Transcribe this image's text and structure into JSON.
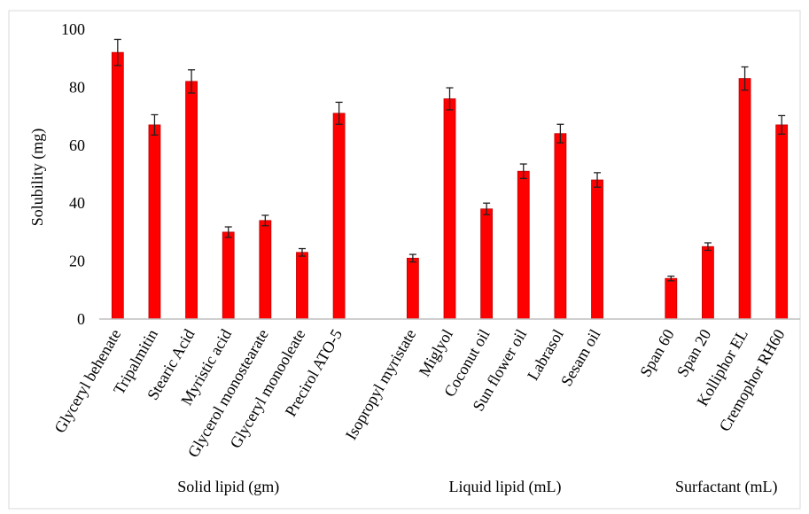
{
  "chart_data": {
    "type": "bar",
    "ylabel": "Solubility (mg)",
    "ylim": [
      0,
      100
    ],
    "yticks": [
      0,
      20,
      40,
      60,
      80,
      100
    ],
    "grid": false,
    "bar_color": "#ff0000",
    "bar_edge_color": "#c00000",
    "error_bar_color": "#222222",
    "categories": [
      "Glyceryl behenate",
      "Tripalmitin",
      "Stearic Acid",
      "Myristic acid",
      "Glycerol monostearate",
      "Glyceryl monooleate",
      "Precirol ATO-5",
      "",
      "Isopropyl myristate",
      "Miglyol",
      "Coconut oil",
      "Sun flower oil",
      "Labrasol",
      "Sesam oil",
      "",
      "Span 60",
      "Span 20",
      "Kolliphor EL",
      "Cremophor RH60"
    ],
    "values": [
      92,
      67,
      82,
      30,
      34,
      23,
      71,
      null,
      21,
      76,
      38,
      51,
      64,
      48,
      null,
      14,
      25,
      83,
      67
    ],
    "errors": [
      4.5,
      3.5,
      4,
      1.8,
      1.8,
      1.3,
      3.8,
      null,
      1.3,
      3.8,
      2,
      2.5,
      3.2,
      2.5,
      null,
      0.8,
      1.3,
      4,
      3.2
    ],
    "groups": [
      {
        "label": "Solid lipid (gm)",
        "start": 0,
        "end": 6
      },
      {
        "label": "Liquid lipid (mL)",
        "start": 8,
        "end": 13
      },
      {
        "label": "Surfactant (mL)",
        "start": 15,
        "end": 18
      }
    ]
  }
}
